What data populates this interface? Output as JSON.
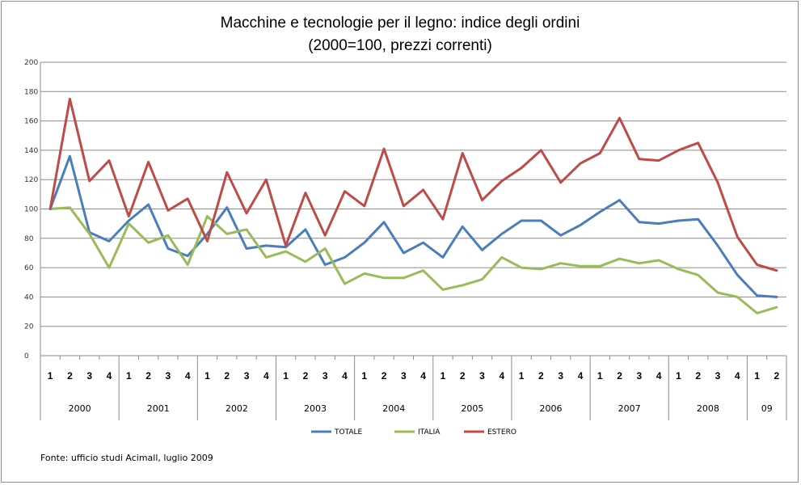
{
  "chart_data": {
    "type": "line",
    "title": "Macchine e tecnologie per il legno: indice degli ordini",
    "subtitle": "(2000=100, prezzi correnti)",
    "xlabel": "",
    "ylabel": "",
    "ylim": [
      0,
      200
    ],
    "yticks": [
      "0",
      "20",
      "40",
      "60",
      "80",
      "100",
      "120",
      "140",
      "160",
      "180",
      "200"
    ],
    "grid": true,
    "legend_position": "bottom",
    "years": [
      {
        "label": "2000",
        "quarters": [
          "1",
          "2",
          "3",
          "4"
        ]
      },
      {
        "label": "2001",
        "quarters": [
          "1",
          "2",
          "3",
          "4"
        ]
      },
      {
        "label": "2002",
        "quarters": [
          "1",
          "2",
          "3",
          "4"
        ]
      },
      {
        "label": "2003",
        "quarters": [
          "1",
          "2",
          "3",
          "4"
        ]
      },
      {
        "label": "2004",
        "quarters": [
          "1",
          "2",
          "3",
          "4"
        ]
      },
      {
        "label": "2005",
        "quarters": [
          "1",
          "2",
          "3",
          "4"
        ]
      },
      {
        "label": "2006",
        "quarters": [
          "1",
          "2",
          "3",
          "4"
        ]
      },
      {
        "label": "2007",
        "quarters": [
          "1",
          "2",
          "3",
          "4"
        ]
      },
      {
        "label": "2008",
        "quarters": [
          "1",
          "2",
          "3",
          "4"
        ]
      },
      {
        "label": "09",
        "quarters": [
          "1",
          "2"
        ]
      }
    ],
    "series": [
      {
        "name": "TOTALE",
        "color": "#4a7ebb",
        "values": [
          100,
          136,
          84,
          78,
          92,
          103,
          73,
          68,
          83,
          101,
          73,
          75,
          74,
          86,
          62,
          67,
          77,
          91,
          70,
          77,
          67,
          88,
          72,
          83,
          92,
          92,
          82,
          89,
          98,
          106,
          91,
          90,
          92,
          93,
          75,
          55,
          41,
          40
        ]
      },
      {
        "name": "ITALIA",
        "color": "#9bbb59",
        "values": [
          100,
          101,
          83,
          60,
          90,
          77,
          82,
          62,
          95,
          83,
          86,
          67,
          71,
          64,
          73,
          49,
          56,
          53,
          53,
          58,
          45,
          48,
          52,
          67,
          60,
          59,
          63,
          61,
          61,
          66,
          63,
          65,
          59,
          55,
          43,
          40,
          29,
          33
        ]
      },
      {
        "name": "ESTERO",
        "color": "#be4b48",
        "values": [
          100,
          175,
          119,
          133,
          95,
          132,
          99,
          107,
          78,
          125,
          97,
          120,
          75,
          111,
          82,
          112,
          102,
          141,
          102,
          113,
          93,
          138,
          106,
          119,
          128,
          140,
          118,
          131,
          138,
          162,
          134,
          133,
          140,
          145,
          118,
          81,
          62,
          58
        ]
      }
    ],
    "source": "Fonte: ufficio studi Acimall, luglio 2009"
  }
}
